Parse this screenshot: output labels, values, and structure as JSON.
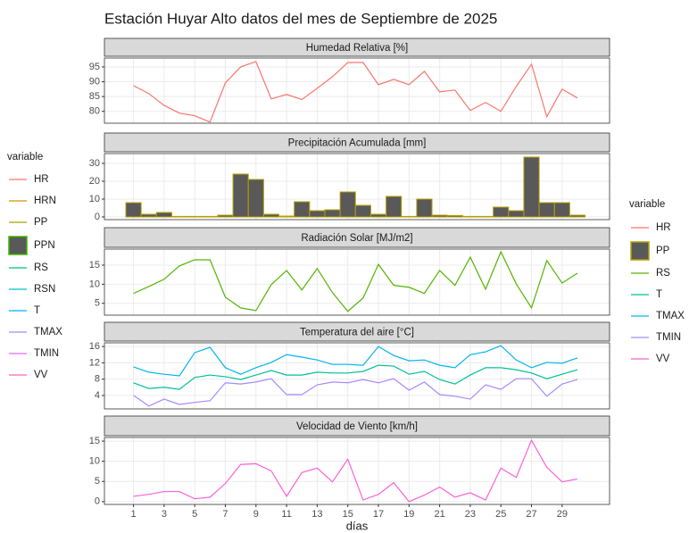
{
  "title": "Estación Huyar Alto datos del mes de Septiembre de 2025",
  "x_label": "días",
  "legends": [
    {
      "title": "variable",
      "items": [
        {
          "name": "HR",
          "color": "#F8766D",
          "key": "line"
        },
        {
          "name": "HRN",
          "color": "#D89000",
          "key": "line"
        },
        {
          "name": "PP",
          "color": "#A3A500",
          "key": "line"
        },
        {
          "name": "PPN",
          "color": "#39B600",
          "key": "box"
        },
        {
          "name": "RS",
          "color": "#00BF7D",
          "key": "line"
        },
        {
          "name": "RSN",
          "color": "#00BFC4",
          "key": "line"
        },
        {
          "name": "T",
          "color": "#00B0F6",
          "key": "line"
        },
        {
          "name": "TMAX",
          "color": "#9590FF",
          "key": "line"
        },
        {
          "name": "TMIN",
          "color": "#E76BF3",
          "key": "line"
        },
        {
          "name": "VV",
          "color": "#FF62BC",
          "key": "line"
        }
      ]
    },
    {
      "title": "variable",
      "items": [
        {
          "name": "HR",
          "color": "#F8766D",
          "key": "line"
        },
        {
          "name": "PP",
          "color": "#B79F00",
          "key": "box"
        },
        {
          "name": "RS",
          "color": "#53B400",
          "key": "line"
        },
        {
          "name": "T",
          "color": "#00C094",
          "key": "line"
        },
        {
          "name": "TMAX",
          "color": "#00B6EB",
          "key": "line"
        },
        {
          "name": "TMIN",
          "color": "#A58AFF",
          "key": "line"
        },
        {
          "name": "VV",
          "color": "#FB61D7",
          "key": "line"
        }
      ]
    }
  ],
  "chart_data": [
    {
      "type": "line",
      "title": "Humedad Relativa [%]",
      "x": [
        1,
        2,
        3,
        4,
        5,
        6,
        7,
        8,
        9,
        10,
        11,
        12,
        13,
        14,
        15,
        16,
        17,
        18,
        19,
        20,
        21,
        22,
        23,
        24,
        25,
        26,
        27,
        28,
        29,
        30
      ],
      "xlim": [
        -0.9,
        32.1
      ],
      "xticks": [
        1,
        3,
        5,
        7,
        9,
        11,
        13,
        15,
        17,
        19,
        21,
        23,
        25,
        27,
        29
      ],
      "ylim": [
        76,
        98
      ],
      "yticks": [
        80,
        85,
        90,
        95
      ],
      "series": [
        {
          "name": "HR",
          "color": "#F8766D",
          "values": [
            88.7,
            86,
            82,
            79.4,
            78.5,
            76.4,
            89.6,
            95,
            96.8,
            84.2,
            85.7,
            84,
            87.8,
            91.7,
            96.5,
            96.5,
            89,
            90.8,
            89,
            93.5,
            86.6,
            87.2,
            80.3,
            83,
            80,
            88.4,
            95.9,
            78.2,
            87.5,
            84.5
          ]
        }
      ]
    },
    {
      "type": "bar",
      "title": "Precipitación Acumulada [mm]",
      "x": [
        1,
        2,
        3,
        4,
        5,
        6,
        7,
        8,
        9,
        10,
        11,
        12,
        13,
        14,
        15,
        16,
        17,
        18,
        19,
        20,
        21,
        22,
        23,
        24,
        25,
        26,
        27,
        28,
        29,
        30
      ],
      "xlim": [
        -0.9,
        32.1
      ],
      "xticks": [
        1,
        3,
        5,
        7,
        9,
        11,
        13,
        15,
        17,
        19,
        21,
        23,
        25,
        27,
        29
      ],
      "ylim": [
        -1.5,
        35.5
      ],
      "yticks": [
        0,
        10,
        20,
        30
      ],
      "series": [
        {
          "name": "PP",
          "color": "#B79F00",
          "fill": "#595959",
          "values": [
            8,
            1.5,
            2.5,
            0.3,
            0.3,
            0.3,
            1,
            24,
            21,
            1.5,
            0.5,
            8.5,
            3.5,
            4,
            14,
            6.5,
            1.5,
            11.5,
            0.3,
            10,
            1,
            0.8,
            0.3,
            0.3,
            5.5,
            3.5,
            33.5,
            8,
            8,
            1
          ]
        }
      ]
    },
    {
      "type": "line",
      "title": "Radiación Solar [MJ/m2]",
      "x": [
        1,
        2,
        3,
        4,
        5,
        6,
        7,
        8,
        9,
        10,
        11,
        12,
        13,
        14,
        15,
        16,
        17,
        18,
        19,
        20,
        21,
        22,
        23,
        24,
        25,
        26,
        27,
        28,
        29,
        30
      ],
      "xlim": [
        -0.9,
        32.1
      ],
      "xticks": [
        1,
        3,
        5,
        7,
        9,
        11,
        13,
        15,
        17,
        19,
        21,
        23,
        25,
        27,
        29
      ],
      "ylim": [
        1.9,
        19.2
      ],
      "yticks": [
        5,
        10,
        15
      ],
      "series": [
        {
          "name": "RS",
          "color": "#53B400",
          "values": [
            7.6,
            9.4,
            11.3,
            14.8,
            16.4,
            16.4,
            6.6,
            3.8,
            3.1,
            9.9,
            13.6,
            8.5,
            14.1,
            7.8,
            2.9,
            6.4,
            15.2,
            9.7,
            9.2,
            7.6,
            13.6,
            9.7,
            17.1,
            8.7,
            18.5,
            10.1,
            3.8,
            16.2,
            10.3,
            12.9
          ]
        }
      ]
    },
    {
      "type": "line",
      "title": "Temperatura del aire [°C]",
      "x": [
        1,
        2,
        3,
        4,
        5,
        6,
        7,
        8,
        9,
        10,
        11,
        12,
        13,
        14,
        15,
        16,
        17,
        18,
        19,
        20,
        21,
        22,
        23,
        24,
        25,
        26,
        27,
        28,
        29,
        30
      ],
      "xlim": [
        -0.9,
        32.1
      ],
      "xticks": [
        1,
        3,
        5,
        7,
        9,
        11,
        13,
        15,
        17,
        19,
        21,
        23,
        25,
        27,
        29
      ],
      "ylim": [
        0.7,
        16.9
      ],
      "yticks": [
        4,
        8,
        12,
        16
      ],
      "series": [
        {
          "name": "T",
          "color": "#00C094",
          "values": [
            7.1,
            5.7,
            6,
            5.5,
            8.4,
            9,
            8.6,
            7.9,
            9,
            10.1,
            9,
            9,
            9.7,
            9.5,
            9.5,
            9.9,
            11.4,
            11.2,
            9.2,
            9.9,
            7.9,
            6.8,
            9,
            10.8,
            10.8,
            10.3,
            9.5,
            8.1,
            9.2,
            10.3
          ]
        },
        {
          "name": "TMAX",
          "color": "#00B6EB",
          "values": [
            11,
            9.7,
            9.2,
            8.8,
            14.5,
            15.8,
            10.8,
            9.2,
            10.8,
            12.1,
            14,
            13.4,
            12.7,
            11.6,
            11.6,
            11.4,
            16,
            13.8,
            12.5,
            12.7,
            11.4,
            10.8,
            14,
            14.7,
            16.2,
            12.7,
            10.8,
            12.1,
            11.9,
            13.2
          ]
        },
        {
          "name": "TMIN",
          "color": "#A58AFF",
          "values": [
            4,
            1.4,
            3.1,
            1.8,
            2.3,
            2.7,
            7.1,
            6.8,
            7.3,
            8.1,
            4.2,
            4.2,
            6.6,
            7.3,
            7.1,
            7.9,
            7.1,
            8.1,
            5.3,
            7.3,
            4.2,
            3.8,
            3.1,
            6.6,
            5.5,
            8.1,
            8.1,
            3.8,
            6.8,
            7.9
          ]
        }
      ]
    },
    {
      "type": "line",
      "title": "Velocidad de Viento [km/h]",
      "x": [
        1,
        2,
        3,
        4,
        5,
        6,
        7,
        8,
        9,
        10,
        11,
        12,
        13,
        14,
        15,
        16,
        17,
        18,
        19,
        20,
        21,
        22,
        23,
        24,
        25,
        26,
        27,
        28,
        29,
        30
      ],
      "xlim": [
        -0.9,
        32.1
      ],
      "xticks": [
        1,
        3,
        5,
        7,
        9,
        11,
        13,
        15,
        17,
        19,
        21,
        23,
        25,
        27,
        29
      ],
      "ylim": [
        -0.7,
        15.9
      ],
      "yticks": [
        0,
        5,
        10,
        15
      ],
      "series": [
        {
          "name": "VV",
          "color": "#FB61D7",
          "values": [
            1.3,
            1.8,
            2.5,
            2.5,
            0.7,
            1.1,
            4.5,
            9.2,
            9.4,
            7.6,
            1.3,
            7.2,
            8.3,
            4.9,
            10.5,
            0.4,
            1.8,
            4.7,
            0,
            1.6,
            3.6,
            1.1,
            2.2,
            0.4,
            8.3,
            6,
            15.2,
            8.5,
            4.9,
            5.6
          ]
        }
      ]
    }
  ]
}
